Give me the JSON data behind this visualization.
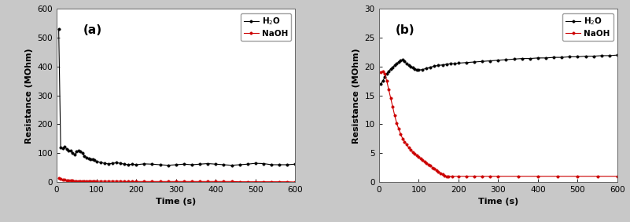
{
  "panel_a": {
    "label": "(a)",
    "xlabel": "Time (s)",
    "ylabel": "Resistance (MOhm)",
    "xlim": [
      0,
      600
    ],
    "ylim": [
      0,
      600
    ],
    "yticks": [
      0,
      100,
      200,
      300,
      400,
      500,
      600
    ],
    "xticks": [
      0,
      100,
      200,
      300,
      400,
      500,
      600
    ],
    "h2o_x": [
      5,
      10,
      15,
      20,
      25,
      30,
      35,
      40,
      45,
      50,
      55,
      60,
      65,
      70,
      75,
      80,
      85,
      90,
      95,
      100,
      110,
      120,
      130,
      140,
      150,
      160,
      170,
      180,
      190,
      200,
      220,
      240,
      260,
      280,
      300,
      320,
      340,
      360,
      380,
      400,
      420,
      440,
      460,
      480,
      500,
      520,
      540,
      560,
      580,
      600
    ],
    "h2o_y": [
      530,
      120,
      118,
      122,
      115,
      110,
      108,
      100,
      95,
      105,
      110,
      105,
      100,
      90,
      85,
      82,
      78,
      80,
      75,
      72,
      68,
      65,
      63,
      65,
      67,
      65,
      62,
      60,
      62,
      60,
      63,
      62,
      60,
      58,
      60,
      62,
      60,
      62,
      64,
      62,
      60,
      58,
      60,
      62,
      65,
      64,
      60,
      60,
      60,
      62
    ],
    "naoh_x": [
      5,
      10,
      15,
      20,
      25,
      30,
      35,
      40,
      45,
      50,
      55,
      60,
      65,
      70,
      75,
      80,
      85,
      90,
      95,
      100,
      110,
      120,
      130,
      140,
      150,
      160,
      170,
      180,
      190,
      200,
      220,
      240,
      260,
      280,
      300,
      320,
      340,
      360,
      380,
      400,
      420,
      440,
      460,
      480,
      500,
      520,
      540,
      560,
      580,
      600
    ],
    "naoh_y": [
      15,
      10,
      8,
      7,
      6,
      5,
      5,
      5,
      4,
      4,
      4,
      4,
      4,
      3,
      3,
      3,
      3,
      3,
      3,
      3,
      3,
      3,
      3,
      3,
      3,
      3,
      2,
      2,
      2,
      2,
      2,
      2,
      2,
      2,
      2,
      2,
      2,
      2,
      2,
      2,
      2,
      2,
      1,
      1,
      1,
      1,
      1,
      1,
      1,
      0
    ]
  },
  "panel_b": {
    "label": "(b)",
    "xlabel": "Time (s)",
    "ylabel": "Resistance (MOhm)",
    "xlim": [
      0,
      600
    ],
    "ylim": [
      0,
      30
    ],
    "yticks": [
      0,
      5,
      10,
      15,
      20,
      25,
      30
    ],
    "xticks": [
      0,
      100,
      200,
      300,
      400,
      500,
      600
    ],
    "h2o_x": [
      5,
      10,
      15,
      20,
      25,
      30,
      35,
      40,
      45,
      50,
      55,
      60,
      65,
      70,
      75,
      80,
      85,
      90,
      95,
      100,
      110,
      120,
      130,
      140,
      150,
      160,
      170,
      180,
      190,
      200,
      220,
      240,
      260,
      280,
      300,
      320,
      340,
      360,
      380,
      400,
      420,
      440,
      460,
      480,
      500,
      520,
      540,
      560,
      580,
      600
    ],
    "h2o_y": [
      17.0,
      17.5,
      18.2,
      18.8,
      19.2,
      19.6,
      19.9,
      20.2,
      20.5,
      20.8,
      21.1,
      21.2,
      20.9,
      20.5,
      20.2,
      20.0,
      19.8,
      19.6,
      19.5,
      19.4,
      19.5,
      19.7,
      19.9,
      20.1,
      20.2,
      20.3,
      20.4,
      20.5,
      20.5,
      20.6,
      20.7,
      20.8,
      20.9,
      21.0,
      21.1,
      21.2,
      21.3,
      21.4,
      21.4,
      21.5,
      21.5,
      21.6,
      21.6,
      21.7,
      21.7,
      21.8,
      21.8,
      21.9,
      21.9,
      22.0
    ],
    "naoh_x": [
      5,
      10,
      15,
      20,
      25,
      30,
      35,
      40,
      45,
      50,
      55,
      60,
      65,
      70,
      75,
      80,
      85,
      90,
      95,
      100,
      105,
      110,
      115,
      120,
      125,
      130,
      135,
      140,
      145,
      150,
      155,
      160,
      165,
      170,
      175,
      185,
      200,
      220,
      240,
      260,
      280,
      300,
      350,
      400,
      450,
      500,
      550,
      600
    ],
    "naoh_y": [
      19.0,
      19.2,
      18.8,
      17.5,
      16.0,
      14.5,
      13.0,
      11.5,
      10.2,
      9.2,
      8.3,
      7.5,
      7.0,
      6.5,
      6.0,
      5.6,
      5.2,
      4.9,
      4.6,
      4.3,
      4.1,
      3.8,
      3.5,
      3.3,
      3.0,
      2.8,
      2.5,
      2.3,
      2.0,
      1.8,
      1.5,
      1.3,
      1.1,
      1.0,
      1.0,
      1.0,
      1.0,
      1.0,
      1.0,
      1.0,
      1.0,
      1.0,
      1.0,
      1.0,
      1.0,
      1.0,
      1.0,
      1.0
    ]
  },
  "h2o_color": "#000000",
  "naoh_color": "#cc0000",
  "marker_size": 2.5,
  "line_width": 0.8,
  "plot_bg_color": "#ffffff",
  "fig_bg_color": "#c8c8c8",
  "legend_h2o": "H$_2$O",
  "legend_naoh": "NaOH",
  "label_fontsize": 11,
  "tick_fontsize": 7.5,
  "axis_label_fontsize": 8
}
